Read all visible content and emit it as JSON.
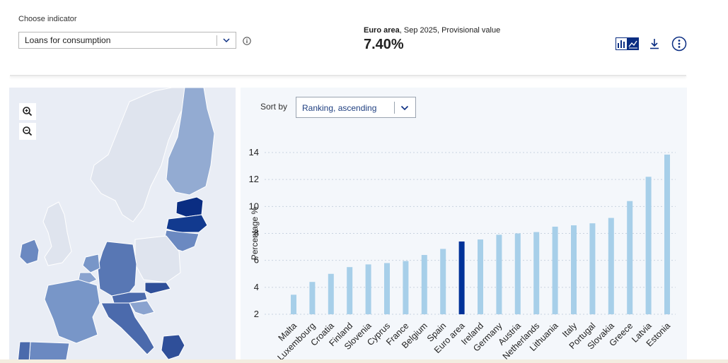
{
  "indicator": {
    "label": "Choose indicator",
    "selected": "Loans for consumption"
  },
  "headline": {
    "region": "Euro area",
    "detail": ", Sep 2025, Provisional value",
    "value": "7.40%"
  },
  "toolbar": {
    "icons": [
      "bar-chart-icon",
      "line-chart-icon",
      "download-icon",
      "more-options-icon",
      "info-icon"
    ]
  },
  "map": {
    "icons": [
      "zoom-in-icon",
      "zoom-out-icon"
    ]
  },
  "sort": {
    "label": "Sort by",
    "selected": "Ranking, ascending"
  },
  "colors": {
    "accent": "#0a2d82",
    "bar": "#a7cfe9",
    "highlight": "#003299"
  },
  "chart_data": {
    "type": "bar",
    "ylabel": "Percentage %",
    "ylim": [
      2,
      14
    ],
    "yticks": [
      2,
      4,
      6,
      8,
      10,
      12,
      14
    ],
    "grid": true,
    "highlight": "Euro area",
    "categories": [
      "Malta",
      "Luxembourg",
      "Croatia",
      "Finland",
      "Slovenia",
      "Cyprus",
      "France",
      "Belgium",
      "Spain",
      "Euro area",
      "Ireland",
      "Germany",
      "Austria",
      "Netherlands",
      "Lithuania",
      "Italy",
      "Portugal",
      "Slovakia",
      "Greece",
      "Latvia",
      "Estonia"
    ],
    "values": [
      3.45,
      4.4,
      5.0,
      5.5,
      5.7,
      5.8,
      5.95,
      6.4,
      6.85,
      7.4,
      7.55,
      7.9,
      8.0,
      8.1,
      8.5,
      8.6,
      8.75,
      9.15,
      10.4,
      12.2,
      13.85
    ]
  }
}
